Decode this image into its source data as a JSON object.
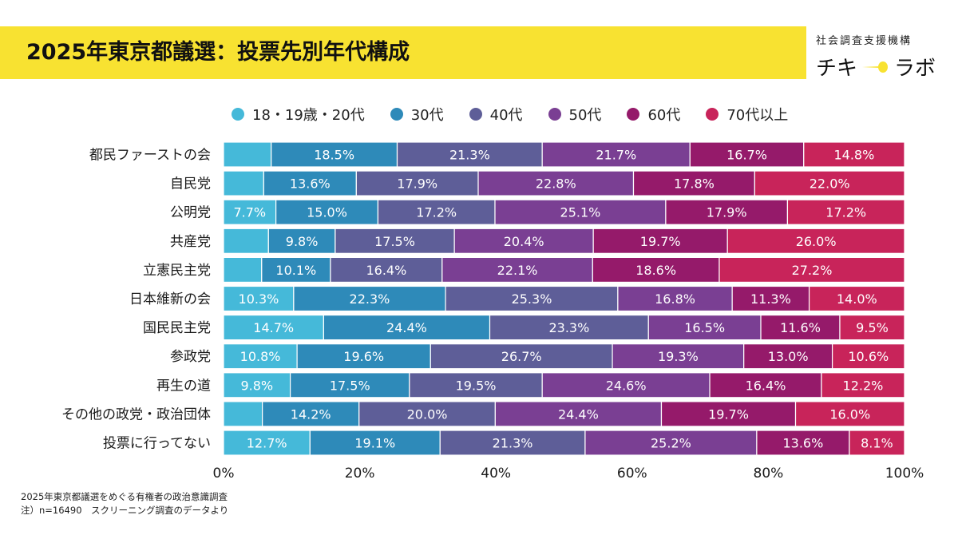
{
  "header": {
    "title": "2025年東京都議選：投票先別年代構成",
    "org": "社会調査支援機構",
    "brand_left": "チキ",
    "brand_right": "ラボ"
  },
  "footnote": {
    "line1": "2025年東京都議選をめぐる有権者の政治意識調査",
    "line2": "注）n=16490　スクリーニング調査のデータより"
  },
  "colors": [
    "#45b9d9",
    "#2e8ab9",
    "#5e5e98",
    "#7a3f93",
    "#951a6a",
    "#c8245a"
  ],
  "chart_data": {
    "type": "bar",
    "orientation": "horizontal",
    "stacked": "100%",
    "categories": [
      "都民ファーストの会",
      "自民党",
      "公明党",
      "共産党",
      "立憲民主党",
      "日本維新の会",
      "国民民主党",
      "参政党",
      "再生の道",
      "その他の政党・政治団体",
      "投票に行ってない"
    ],
    "series": [
      {
        "name": "18・19歳・20代",
        "color": "#45b9d9",
        "values": [
          7.0,
          5.9,
          7.7,
          6.6,
          5.6,
          10.3,
          14.7,
          10.8,
          9.8,
          5.7,
          12.7
        ]
      },
      {
        "name": "30代",
        "color": "#2e8ab9",
        "values": [
          18.5,
          13.6,
          15.0,
          9.8,
          10.1,
          22.3,
          24.4,
          19.6,
          17.5,
          14.2,
          19.1
        ]
      },
      {
        "name": "40代",
        "color": "#5e5e98",
        "values": [
          21.3,
          17.9,
          17.2,
          17.5,
          16.4,
          25.3,
          23.3,
          26.7,
          19.5,
          20.0,
          21.3
        ]
      },
      {
        "name": "50代",
        "color": "#7a3f93",
        "values": [
          21.7,
          22.8,
          25.1,
          20.4,
          22.1,
          16.8,
          16.5,
          19.3,
          24.6,
          24.4,
          25.2
        ]
      },
      {
        "name": "60代",
        "color": "#951a6a",
        "values": [
          16.7,
          17.8,
          17.9,
          19.7,
          18.6,
          11.3,
          11.6,
          13.0,
          16.4,
          19.7,
          13.6
        ]
      },
      {
        "name": "70代以上",
        "color": "#c8245a",
        "values": [
          14.8,
          22.0,
          17.2,
          26.0,
          27.2,
          14.0,
          9.5,
          10.6,
          12.2,
          16.0,
          8.1
        ]
      }
    ],
    "labels": [
      [
        "",
        "18.5%",
        "21.3%",
        "21.7%",
        "16.7%",
        "14.8%"
      ],
      [
        "",
        "13.6%",
        "17.9%",
        "22.8%",
        "17.8%",
        "22.0%"
      ],
      [
        "7.7%",
        "15.0%",
        "17.2%",
        "25.1%",
        "17.9%",
        "17.2%"
      ],
      [
        "",
        "9.8%",
        "17.5%",
        "20.4%",
        "19.7%",
        "26.0%"
      ],
      [
        "",
        "10.1%",
        "16.4%",
        "22.1%",
        "18.6%",
        "27.2%"
      ],
      [
        "10.3%",
        "22.3%",
        "25.3%",
        "16.8%",
        "11.3%",
        "14.0%"
      ],
      [
        "14.7%",
        "24.4%",
        "23.3%",
        "16.5%",
        "11.6%",
        "9.5%"
      ],
      [
        "10.8%",
        "19.6%",
        "26.7%",
        "19.3%",
        "13.0%",
        "10.6%"
      ],
      [
        "9.8%",
        "17.5%",
        "19.5%",
        "24.6%",
        "16.4%",
        "12.2%"
      ],
      [
        "",
        "14.2%",
        "20.0%",
        "24.4%",
        "19.7%",
        "16.0%"
      ],
      [
        "12.7%",
        "19.1%",
        "21.3%",
        "25.2%",
        "13.6%",
        "8.1%"
      ]
    ],
    "x_ticks": [
      "0%",
      "20%",
      "40%",
      "60%",
      "80%",
      "100%"
    ],
    "xlim": [
      0,
      100
    ],
    "legend_position": "top",
    "grid": false
  }
}
